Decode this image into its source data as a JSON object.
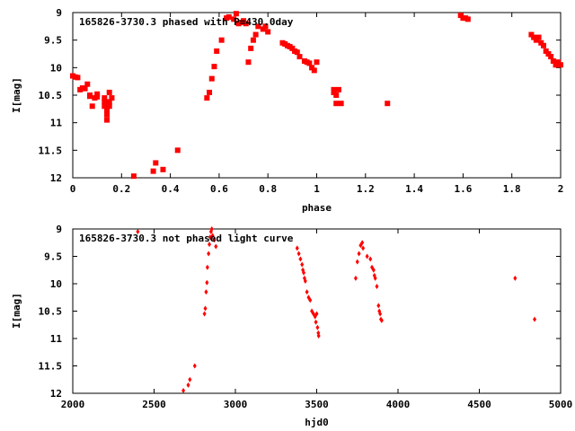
{
  "chart_data": [
    {
      "type": "scatter",
      "title": "165826-3730.3 phased with P=430.0day",
      "xlabel": "phase",
      "ylabel": "I[mag]",
      "xlim": [
        0,
        2
      ],
      "ylim": [
        12,
        9
      ],
      "y_inverted": true,
      "grid": false,
      "color": "#ff0000",
      "marker": "square",
      "xticks": [
        "0",
        "0.2",
        "0.4",
        "0.6",
        "0.8",
        "1",
        "1.2",
        "1.4",
        "1.6",
        "1.8",
        "2"
      ],
      "yticks": [
        "9",
        "9.5",
        "10",
        "10.5",
        "11",
        "11.5",
        "12"
      ],
      "series": [
        {
          "points": [
            [
              0.0,
              10.15
            ],
            [
              0.01,
              10.17
            ],
            [
              0.02,
              10.18
            ],
            [
              0.03,
              10.4
            ],
            [
              0.04,
              10.37
            ],
            [
              0.05,
              10.38
            ],
            [
              0.06,
              10.3
            ],
            [
              0.07,
              10.5
            ],
            [
              0.07,
              10.52
            ],
            [
              0.08,
              10.7
            ],
            [
              0.09,
              10.55
            ],
            [
              0.1,
              10.48
            ],
            [
              0.1,
              10.53
            ],
            [
              0.13,
              10.55
            ],
            [
              0.13,
              10.62
            ],
            [
              0.13,
              10.7
            ],
            [
              0.14,
              10.78
            ],
            [
              0.14,
              10.85
            ],
            [
              0.14,
              10.95
            ],
            [
              0.15,
              10.45
            ],
            [
              0.15,
              10.62
            ],
            [
              0.15,
              10.7
            ],
            [
              0.16,
              10.55
            ],
            [
              0.25,
              11.97
            ],
            [
              0.33,
              11.88
            ],
            [
              0.34,
              11.73
            ],
            [
              0.37,
              11.85
            ],
            [
              0.43,
              11.5
            ],
            [
              0.55,
              10.55
            ],
            [
              0.56,
              10.45
            ],
            [
              0.57,
              10.2
            ],
            [
              0.58,
              9.98
            ],
            [
              0.59,
              9.7
            ],
            [
              0.61,
              9.5
            ],
            [
              0.63,
              9.1
            ],
            [
              0.64,
              9.08
            ],
            [
              0.66,
              9.12
            ],
            [
              0.67,
              9.02
            ],
            [
              0.68,
              9.2
            ],
            [
              0.69,
              9.18
            ],
            [
              0.7,
              9.15
            ],
            [
              0.71,
              9.2
            ],
            [
              0.72,
              9.9
            ],
            [
              0.73,
              9.65
            ],
            [
              0.74,
              9.5
            ],
            [
              0.75,
              9.4
            ],
            [
              0.76,
              9.25
            ],
            [
              0.78,
              9.3
            ],
            [
              0.79,
              9.25
            ],
            [
              0.8,
              9.35
            ],
            [
              0.86,
              9.55
            ],
            [
              0.87,
              9.57
            ],
            [
              0.88,
              9.6
            ],
            [
              0.89,
              9.62
            ],
            [
              0.9,
              9.65
            ],
            [
              0.91,
              9.7
            ],
            [
              0.92,
              9.72
            ],
            [
              0.93,
              9.8
            ],
            [
              0.95,
              9.88
            ],
            [
              0.96,
              9.9
            ],
            [
              0.97,
              9.92
            ],
            [
              0.98,
              10.0
            ],
            [
              0.99,
              10.05
            ],
            [
              1.0,
              9.9
            ],
            [
              1.07,
              10.4
            ],
            [
              1.07,
              10.45
            ],
            [
              1.08,
              10.5
            ],
            [
              1.08,
              10.65
            ],
            [
              1.09,
              10.4
            ],
            [
              1.1,
              10.65
            ],
            [
              1.29,
              10.65
            ],
            [
              1.59,
              9.05
            ],
            [
              1.6,
              9.1
            ],
            [
              1.61,
              9.1
            ],
            [
              1.62,
              9.12
            ],
            [
              1.88,
              9.4
            ],
            [
              1.89,
              9.45
            ],
            [
              1.9,
              9.5
            ],
            [
              1.91,
              9.45
            ],
            [
              1.92,
              9.55
            ],
            [
              1.93,
              9.6
            ],
            [
              1.94,
              9.7
            ],
            [
              1.95,
              9.75
            ],
            [
              1.96,
              9.8
            ],
            [
              1.97,
              9.88
            ],
            [
              1.98,
              9.95
            ],
            [
              1.99,
              9.9
            ],
            [
              2.0,
              9.95
            ]
          ]
        }
      ]
    },
    {
      "type": "scatter",
      "title": "165826-3730.3 not phased light curve",
      "xlabel": "hjd0",
      "ylabel": "I[mag]",
      "xlim": [
        2000,
        5000
      ],
      "ylim": [
        12,
        9
      ],
      "y_inverted": true,
      "grid": false,
      "color": "#ff0000",
      "marker": "diamond",
      "xticks": [
        "2000",
        "2500",
        "3000",
        "3500",
        "4000",
        "4500",
        "5000"
      ],
      "yticks": [
        "9",
        "9.5",
        "10",
        "10.5",
        "11",
        "11.5",
        "12"
      ],
      "series": [
        {
          "points": [
            [
              2400,
              9.05
            ],
            [
              2680,
              11.95
            ],
            [
              2710,
              11.85
            ],
            [
              2720,
              11.75
            ],
            [
              2750,
              11.5
            ],
            [
              2810,
              10.55
            ],
            [
              2815,
              10.45
            ],
            [
              2820,
              10.15
            ],
            [
              2825,
              9.98
            ],
            [
              2828,
              9.7
            ],
            [
              2835,
              9.45
            ],
            [
              2840,
              9.28
            ],
            [
              2845,
              9.15
            ],
            [
              2850,
              9.05
            ],
            [
              2855,
              9.0
            ],
            [
              2860,
              9.12
            ],
            [
              2870,
              9.2
            ],
            [
              2880,
              9.32
            ],
            [
              3380,
              9.35
            ],
            [
              3390,
              9.45
            ],
            [
              3400,
              9.55
            ],
            [
              3410,
              9.65
            ],
            [
              3415,
              9.75
            ],
            [
              3420,
              9.8
            ],
            [
              3425,
              9.9
            ],
            [
              3430,
              9.95
            ],
            [
              3440,
              10.15
            ],
            [
              3450,
              10.25
            ],
            [
              3460,
              10.3
            ],
            [
              3470,
              10.5
            ],
            [
              3480,
              10.55
            ],
            [
              3490,
              10.6
            ],
            [
              3495,
              10.7
            ],
            [
              3500,
              10.55
            ],
            [
              3505,
              10.8
            ],
            [
              3510,
              10.9
            ],
            [
              3512,
              10.95
            ],
            [
              3740,
              9.9
            ],
            [
              3750,
              9.6
            ],
            [
              3760,
              9.45
            ],
            [
              3770,
              9.3
            ],
            [
              3780,
              9.25
            ],
            [
              3785,
              9.35
            ],
            [
              3810,
              9.5
            ],
            [
              3830,
              9.55
            ],
            [
              3840,
              9.7
            ],
            [
              3850,
              9.75
            ],
            [
              3855,
              9.85
            ],
            [
              3860,
              9.9
            ],
            [
              3870,
              10.05
            ],
            [
              3880,
              10.4
            ],
            [
              3885,
              10.5
            ],
            [
              3890,
              10.55
            ],
            [
              3895,
              10.65
            ],
            [
              3900,
              10.67
            ],
            [
              4720,
              9.9
            ],
            [
              4840,
              10.65
            ]
          ]
        }
      ]
    }
  ]
}
